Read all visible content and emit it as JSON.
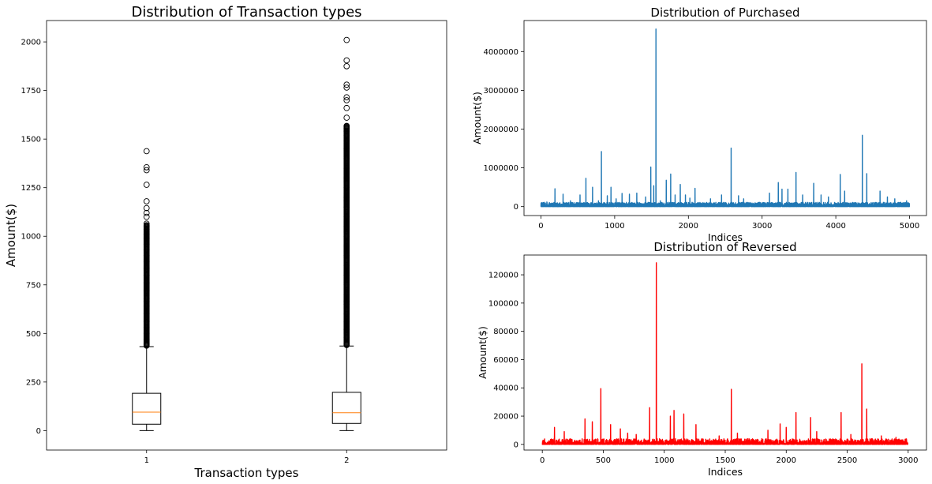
{
  "chart_data": [
    {
      "type": "box",
      "title": "Distribution of Transaction types",
      "xlabel": "Transaction types",
      "ylabel": "Amount($)",
      "categories": [
        "1",
        "2"
      ],
      "ylim": [
        -100,
        2110
      ],
      "yticks": [
        0,
        250,
        500,
        750,
        1000,
        1250,
        1500,
        1750,
        2000
      ],
      "boxes": [
        {
          "category": "1",
          "whisker_low": 0,
          "q1": 33,
          "median": 95,
          "q3": 192,
          "whisker_high": 432,
          "fliers": [
            445,
            470,
            500,
            530,
            560,
            600,
            640,
            680,
            720,
            760,
            800,
            835,
            870,
            900,
            930,
            960,
            990,
            1010,
            1035,
            1050,
            1065,
            1100,
            1120,
            1145,
            1180,
            1265,
            1340,
            1355,
            1438
          ]
        },
        {
          "category": "2",
          "whisker_low": 0,
          "q1": 37,
          "median": 92,
          "q3": 197,
          "whisker_high": 435,
          "fliers": [
            445,
            480,
            520,
            560,
            600,
            650,
            700,
            750,
            800,
            850,
            900,
            950,
            1000,
            1050,
            1100,
            1150,
            1200,
            1250,
            1300,
            1350,
            1400,
            1450,
            1490,
            1520,
            1540,
            1555,
            1565,
            1610,
            1660,
            1700,
            1715,
            1765,
            1780,
            1875,
            1905,
            2010
          ]
        }
      ],
      "colors": {
        "box": "#000000",
        "median": "#ff7f0e"
      }
    },
    {
      "type": "line",
      "title": "Distribution of Purchased",
      "xlabel": "Indices",
      "ylabel": "Amount($)",
      "xlim": [
        -230,
        5230
      ],
      "ylim": [
        -230000,
        4800000
      ],
      "xticks": [
        0,
        1000,
        2000,
        3000,
        4000,
        5000
      ],
      "yticks": [
        0,
        1000000,
        2000000,
        3000000,
        4000000
      ],
      "n_points": 5000,
      "baseline_max": 110000,
      "spikes": [
        {
          "x": 80,
          "y": 120000
        },
        {
          "x": 190,
          "y": 460000
        },
        {
          "x": 300,
          "y": 320000
        },
        {
          "x": 400,
          "y": 150000
        },
        {
          "x": 530,
          "y": 300000
        },
        {
          "x": 610,
          "y": 730000
        },
        {
          "x": 700,
          "y": 500000
        },
        {
          "x": 780,
          "y": 150000
        },
        {
          "x": 820,
          "y": 1420000
        },
        {
          "x": 900,
          "y": 280000
        },
        {
          "x": 950,
          "y": 500000
        },
        {
          "x": 1020,
          "y": 200000
        },
        {
          "x": 1100,
          "y": 340000
        },
        {
          "x": 1200,
          "y": 320000
        },
        {
          "x": 1300,
          "y": 350000
        },
        {
          "x": 1420,
          "y": 250000
        },
        {
          "x": 1490,
          "y": 1020000
        },
        {
          "x": 1530,
          "y": 540000
        },
        {
          "x": 1560,
          "y": 4580000
        },
        {
          "x": 1620,
          "y": 150000
        },
        {
          "x": 1700,
          "y": 680000
        },
        {
          "x": 1760,
          "y": 840000
        },
        {
          "x": 1820,
          "y": 300000
        },
        {
          "x": 1890,
          "y": 570000
        },
        {
          "x": 1960,
          "y": 300000
        },
        {
          "x": 2020,
          "y": 220000
        },
        {
          "x": 2090,
          "y": 470000
        },
        {
          "x": 2300,
          "y": 200000
        },
        {
          "x": 2450,
          "y": 300000
        },
        {
          "x": 2580,
          "y": 1510000
        },
        {
          "x": 2680,
          "y": 280000
        },
        {
          "x": 2750,
          "y": 200000
        },
        {
          "x": 3100,
          "y": 350000
        },
        {
          "x": 3220,
          "y": 620000
        },
        {
          "x": 3270,
          "y": 450000
        },
        {
          "x": 3350,
          "y": 450000
        },
        {
          "x": 3460,
          "y": 880000
        },
        {
          "x": 3550,
          "y": 300000
        },
        {
          "x": 3700,
          "y": 600000
        },
        {
          "x": 3800,
          "y": 300000
        },
        {
          "x": 3900,
          "y": 250000
        },
        {
          "x": 4060,
          "y": 830000
        },
        {
          "x": 4120,
          "y": 400000
        },
        {
          "x": 4360,
          "y": 1840000
        },
        {
          "x": 4420,
          "y": 850000
        },
        {
          "x": 4600,
          "y": 400000
        },
        {
          "x": 4700,
          "y": 250000
        },
        {
          "x": 4800,
          "y": 200000
        },
        {
          "x": 4960,
          "y": 150000
        }
      ],
      "colors": {
        "line": "#1f77b4"
      }
    },
    {
      "type": "line",
      "title": "Distribution of Reversed",
      "xlabel": "Indices",
      "ylabel": "Amount($)",
      "xlim": [
        -150,
        3150
      ],
      "ylim": [
        -4000,
        134000
      ],
      "xticks": [
        0,
        500,
        1000,
        1500,
        2000,
        2500,
        3000
      ],
      "yticks": [
        0,
        20000,
        40000,
        60000,
        80000,
        100000,
        120000
      ],
      "n_points": 3000,
      "baseline_max": 4000,
      "spikes": [
        {
          "x": 100,
          "y": 12000
        },
        {
          "x": 180,
          "y": 9000
        },
        {
          "x": 350,
          "y": 18000
        },
        {
          "x": 410,
          "y": 16000
        },
        {
          "x": 480,
          "y": 39500
        },
        {
          "x": 560,
          "y": 14000
        },
        {
          "x": 640,
          "y": 11000
        },
        {
          "x": 700,
          "y": 8000
        },
        {
          "x": 770,
          "y": 7000
        },
        {
          "x": 880,
          "y": 26000
        },
        {
          "x": 935,
          "y": 128500
        },
        {
          "x": 1050,
          "y": 20000
        },
        {
          "x": 1080,
          "y": 24000
        },
        {
          "x": 1160,
          "y": 21500
        },
        {
          "x": 1260,
          "y": 14000
        },
        {
          "x": 1450,
          "y": 6000
        },
        {
          "x": 1550,
          "y": 39000
        },
        {
          "x": 1600,
          "y": 8000
        },
        {
          "x": 1850,
          "y": 10000
        },
        {
          "x": 1950,
          "y": 14500
        },
        {
          "x": 2000,
          "y": 12000
        },
        {
          "x": 2080,
          "y": 22500
        },
        {
          "x": 2200,
          "y": 19000
        },
        {
          "x": 2250,
          "y": 9000
        },
        {
          "x": 2450,
          "y": 22500
        },
        {
          "x": 2530,
          "y": 7000
        },
        {
          "x": 2620,
          "y": 57000
        },
        {
          "x": 2660,
          "y": 25000
        },
        {
          "x": 2780,
          "y": 6000
        },
        {
          "x": 2900,
          "y": 5000
        }
      ],
      "colors": {
        "line": "#ff0000"
      }
    }
  ]
}
